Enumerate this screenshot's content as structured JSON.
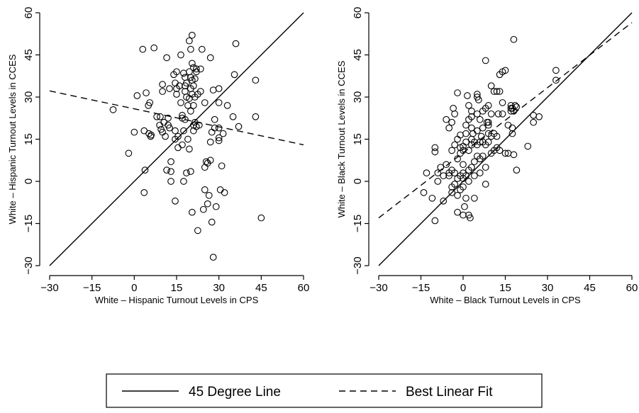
{
  "chart_data": [
    {
      "type": "scatter",
      "xlabel": "White – Hispanic Turnout Levels in CPS",
      "ylabel": "White – Hispanic Turnout Levels in CCES",
      "xlim": [
        -30,
        60
      ],
      "ylim": [
        -30,
        60
      ],
      "xticks": [
        -30,
        -15,
        0,
        15,
        30,
        45,
        60
      ],
      "yticks": [
        -30,
        -15,
        0,
        15,
        30,
        45,
        60
      ],
      "xtick_labels": [
        "−30",
        "−15",
        "0",
        "15",
        "30",
        "45",
        "60"
      ],
      "ytick_labels": [
        "−30",
        "−15",
        "0",
        "15",
        "30",
        "45",
        "60"
      ],
      "grid": false,
      "series": [
        {
          "name": "45 Degree Line",
          "kind": "line",
          "style": "solid",
          "x": [
            -30,
            60
          ],
          "y": [
            -30,
            60
          ]
        },
        {
          "name": "Best Linear Fit",
          "kind": "line",
          "style": "dashed",
          "x": [
            -30,
            60
          ],
          "y": [
            32.2,
            13
          ]
        },
        {
          "kind": "points",
          "marker": "hollow-circle",
          "points": [
            [
              -7.5,
              25.5
            ],
            [
              -2,
              10
            ],
            [
              0,
              17.5
            ],
            [
              1,
              30.5
            ],
            [
              3,
              47
            ],
            [
              3.5,
              18
            ],
            [
              3.5,
              -4
            ],
            [
              3.8,
              4
            ],
            [
              4.2,
              31.5
            ],
            [
              5,
              27
            ],
            [
              5.2,
              17
            ],
            [
              5.5,
              28
            ],
            [
              5.8,
              16
            ],
            [
              6,
              16.5
            ],
            [
              7,
              47.5
            ],
            [
              8,
              23
            ],
            [
              9,
              20
            ],
            [
              9.2,
              23
            ],
            [
              9.5,
              18.5
            ],
            [
              10,
              34.5
            ],
            [
              10,
              32
            ],
            [
              10,
              17.5
            ],
            [
              10.5,
              21
            ],
            [
              11,
              16
            ],
            [
              11.5,
              44
            ],
            [
              11.5,
              4
            ],
            [
              12,
              20
            ],
            [
              12,
              22.5
            ],
            [
              12.5,
              33
            ],
            [
              12.5,
              19
            ],
            [
              13,
              3.5
            ],
            [
              13,
              0
            ],
            [
              13,
              7
            ],
            [
              14,
              38
            ],
            [
              14.5,
              35
            ],
            [
              14.5,
              18
            ],
            [
              14.5,
              15
            ],
            [
              14.5,
              -7
            ],
            [
              15,
              39
            ],
            [
              15,
              33
            ],
            [
              15,
              31
            ],
            [
              15.5,
              12
            ],
            [
              15.5,
              16
            ],
            [
              16,
              34
            ],
            [
              16.5,
              28
            ],
            [
              16.5,
              45
            ],
            [
              17,
              22.5
            ],
            [
              17,
              23.5
            ],
            [
              17,
              13
            ],
            [
              17.5,
              38.5
            ],
            [
              17.5,
              18
            ],
            [
              17.5,
              0
            ],
            [
              18,
              32
            ],
            [
              18,
              34
            ],
            [
              18,
              37
            ],
            [
              18,
              22
            ],
            [
              18.5,
              30
            ],
            [
              18.5,
              35
            ],
            [
              18.5,
              3
            ],
            [
              19,
              27
            ],
            [
              19,
              15
            ],
            [
              19.5,
              39
            ],
            [
              19.5,
              29.5
            ],
            [
              19.5,
              50
            ],
            [
              19.5,
              11.5
            ],
            [
              20,
              3.5
            ],
            [
              20,
              47
            ],
            [
              20,
              37
            ],
            [
              20,
              33
            ],
            [
              20,
              25
            ],
            [
              20.5,
              52
            ],
            [
              20.5,
              42
            ],
            [
              20.5,
              36
            ],
            [
              20.5,
              31
            ],
            [
              20.5,
              -11
            ],
            [
              21,
              34
            ],
            [
              21,
              40.5
            ],
            [
              21,
              20
            ],
            [
              21,
              18
            ],
            [
              21,
              27
            ],
            [
              21.5,
              36.5
            ],
            [
              21.5,
              30
            ],
            [
              21.5,
              21
            ],
            [
              22,
              39
            ],
            [
              22,
              19.5
            ],
            [
              22,
              40
            ],
            [
              22.5,
              31
            ],
            [
              22.5,
              -17.5
            ],
            [
              23,
              20
            ],
            [
              23.5,
              32
            ],
            [
              23.5,
              40
            ],
            [
              24,
              47
            ],
            [
              24.5,
              -10
            ],
            [
              25,
              28
            ],
            [
              25,
              5
            ],
            [
              25,
              -3
            ],
            [
              25.5,
              7
            ],
            [
              26,
              6.5
            ],
            [
              26,
              -8
            ],
            [
              26.5,
              -5
            ],
            [
              27,
              44
            ],
            [
              27,
              14
            ],
            [
              27,
              7.5
            ],
            [
              27.5,
              17.5
            ],
            [
              27.5,
              -14.5
            ],
            [
              28,
              32.5
            ],
            [
              28,
              -27
            ],
            [
              28.5,
              22
            ],
            [
              28.5,
              19
            ],
            [
              29,
              -9
            ],
            [
              30,
              33
            ],
            [
              30,
              28
            ],
            [
              30,
              19
            ],
            [
              30,
              15.5
            ],
            [
              30,
              14.5
            ],
            [
              30.5,
              -3
            ],
            [
              31,
              5.5
            ],
            [
              31.5,
              17
            ],
            [
              32,
              -4
            ],
            [
              33,
              27
            ],
            [
              35,
              23
            ],
            [
              35.5,
              38
            ],
            [
              36,
              49
            ],
            [
              37,
              19.5
            ],
            [
              43,
              36
            ],
            [
              43,
              23
            ],
            [
              45,
              -13
            ]
          ]
        }
      ]
    },
    {
      "type": "scatter",
      "xlabel": "White – Black Turnout Levels in CPS",
      "ylabel": "White – Black Turnout Levels in CCES",
      "xlim": [
        -30,
        60
      ],
      "ylim": [
        -30,
        60
      ],
      "xticks": [
        -30,
        -15,
        0,
        15,
        30,
        45,
        60
      ],
      "yticks": [
        -30,
        -15,
        0,
        15,
        30,
        45,
        60
      ],
      "xtick_labels": [
        "−30",
        "−15",
        "0",
        "15",
        "30",
        "45",
        "60"
      ],
      "ytick_labels": [
        "−30",
        "−15",
        "0",
        "15",
        "30",
        "45",
        "60"
      ],
      "grid": false,
      "series": [
        {
          "name": "45 Degree Line",
          "kind": "line",
          "style": "solid",
          "x": [
            -30,
            60
          ],
          "y": [
            -30,
            60
          ]
        },
        {
          "name": "Best Linear Fit",
          "kind": "line",
          "style": "dashed",
          "x": [
            -30,
            60
          ],
          "y": [
            -13,
            56.5
          ]
        },
        {
          "kind": "points",
          "marker": "hollow-circle",
          "points": [
            [
              -14,
              -4
            ],
            [
              -13,
              3
            ],
            [
              -11,
              -6
            ],
            [
              -10,
              -14
            ],
            [
              -10,
              10.5
            ],
            [
              -10,
              12
            ],
            [
              -9,
              0
            ],
            [
              -9,
              3
            ],
            [
              -8,
              5
            ],
            [
              -7,
              -7
            ],
            [
              -7,
              2
            ],
            [
              -6,
              6
            ],
            [
              -6,
              22
            ],
            [
              -5,
              2
            ],
            [
              -5,
              3
            ],
            [
              -5,
              19
            ],
            [
              -4,
              -2
            ],
            [
              -4,
              -4
            ],
            [
              -4,
              4
            ],
            [
              -4,
              11
            ],
            [
              -4,
              21
            ],
            [
              -3.5,
              26
            ],
            [
              -3,
              -1
            ],
            [
              -3,
              3
            ],
            [
              -3,
              13
            ],
            [
              -3,
              24
            ],
            [
              -2,
              -5
            ],
            [
              -2,
              -11
            ],
            [
              -2,
              1
            ],
            [
              -2,
              8
            ],
            [
              -2,
              15
            ],
            [
              -2,
              31.5
            ],
            [
              -1,
              -3
            ],
            [
              -1,
              2
            ],
            [
              -1,
              10
            ],
            [
              -1,
              12
            ],
            [
              -1,
              16.5
            ],
            [
              0,
              -2
            ],
            [
              0,
              -12
            ],
            [
              0,
              1
            ],
            [
              0,
              3
            ],
            [
              0,
              6
            ],
            [
              0,
              11
            ],
            [
              0,
              12.5
            ],
            [
              0.5,
              -9
            ],
            [
              1,
              -6
            ],
            [
              1,
              2
            ],
            [
              1,
              14
            ],
            [
              1,
              17
            ],
            [
              1,
              20
            ],
            [
              1.5,
              30.5
            ],
            [
              2,
              -12
            ],
            [
              2,
              0
            ],
            [
              2,
              4
            ],
            [
              2,
              11
            ],
            [
              2,
              22
            ],
            [
              2,
              27
            ],
            [
              2.5,
              -13
            ],
            [
              3,
              5
            ],
            [
              3,
              13
            ],
            [
              3,
              15
            ],
            [
              3,
              19
            ],
            [
              3,
              23
            ],
            [
              3,
              25
            ],
            [
              3.5,
              17
            ],
            [
              4,
              7
            ],
            [
              4,
              14
            ],
            [
              4,
              -6
            ],
            [
              4,
              2
            ],
            [
              5,
              9
            ],
            [
              5,
              13
            ],
            [
              5,
              18
            ],
            [
              5,
              30
            ],
            [
              5,
              24
            ],
            [
              5,
              31
            ],
            [
              5.5,
              29
            ],
            [
              6,
              3
            ],
            [
              6,
              8
            ],
            [
              6,
              14
            ],
            [
              6,
              22
            ],
            [
              6.5,
              16
            ],
            [
              7,
              9
            ],
            [
              7,
              19
            ],
            [
              7,
              14
            ],
            [
              7,
              25
            ],
            [
              8,
              -1
            ],
            [
              8,
              5
            ],
            [
              8,
              13
            ],
            [
              8,
              43
            ],
            [
              8,
              26
            ],
            [
              8.5,
              21
            ],
            [
              9,
              14
            ],
            [
              9,
              20
            ],
            [
              9,
              17
            ],
            [
              9,
              27
            ],
            [
              9,
              21
            ],
            [
              10,
              10
            ],
            [
              10,
              16
            ],
            [
              10,
              24
            ],
            [
              10,
              34
            ],
            [
              11,
              11
            ],
            [
              11,
              17
            ],
            [
              11,
              32
            ],
            [
              12,
              12
            ],
            [
              12,
              16
            ],
            [
              12,
              32
            ],
            [
              12.5,
              24
            ],
            [
              13,
              38
            ],
            [
              13,
              32
            ],
            [
              13,
              11
            ],
            [
              14,
              39
            ],
            [
              14,
              28
            ],
            [
              14,
              24
            ],
            [
              15,
              39.5
            ],
            [
              15,
              10
            ],
            [
              16,
              10
            ],
            [
              16,
              20
            ],
            [
              17,
              25
            ],
            [
              17,
              26
            ],
            [
              17,
              27
            ],
            [
              17.5,
              26
            ],
            [
              17.5,
              19
            ],
            [
              17.5,
              17
            ],
            [
              18,
              9.5
            ],
            [
              18,
              25
            ],
            [
              18,
              50.5
            ],
            [
              18.5,
              27
            ],
            [
              19,
              4
            ],
            [
              19,
              26.5
            ],
            [
              23,
              12.5
            ],
            [
              25,
              21
            ],
            [
              25,
              23.5
            ],
            [
              27,
              23
            ],
            [
              33,
              36
            ],
            [
              33,
              39.5
            ]
          ]
        }
      ]
    }
  ],
  "legend": {
    "items": [
      {
        "label": "45 Degree Line",
        "style": "solid"
      },
      {
        "label": "Best Linear Fit",
        "style": "dashed"
      }
    ]
  }
}
